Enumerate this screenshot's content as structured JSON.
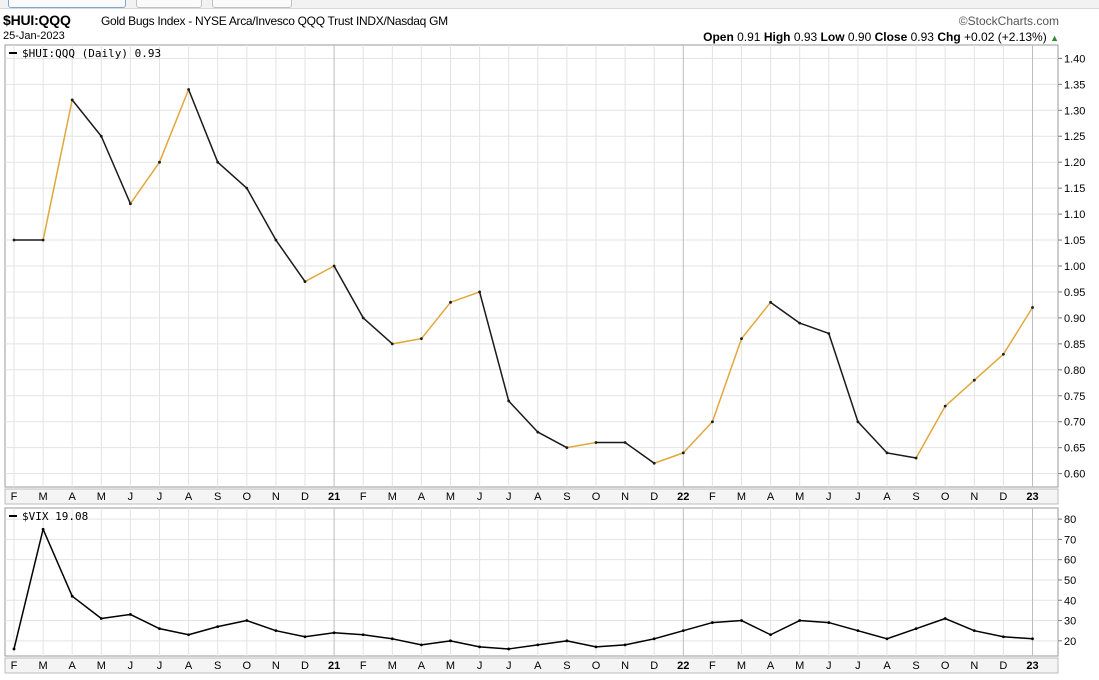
{
  "header": {
    "symbol": "$HUI:QQQ",
    "description": "Gold Bugs Index - NYSE Arca/Invesco QQQ Trust INDX/Nasdaq GM",
    "date": "25-Jan-2023",
    "brand": "StockCharts.com",
    "quote": {
      "open_label": "Open",
      "open": "0.91",
      "high_label": "High",
      "high": "0.93",
      "low_label": "Low",
      "low": "0.90",
      "close_label": "Close",
      "close": "0.93",
      "chg_label": "Chg",
      "chg": "+0.02 (+2.13%)"
    }
  },
  "chart_data": [
    {
      "type": "line",
      "legend": "$HUI:QQQ (Daily) 0.93",
      "ylim": [
        0.58,
        1.42
      ],
      "yticks": [
        "0.60",
        "0.65",
        "0.70",
        "0.75",
        "0.80",
        "0.85",
        "0.90",
        "0.95",
        "1.00",
        "1.05",
        "1.10",
        "1.15",
        "1.20",
        "1.25",
        "1.30",
        "1.35",
        "1.40"
      ],
      "months": [
        "F",
        "M",
        "A",
        "M",
        "J",
        "J",
        "A",
        "S",
        "O",
        "N",
        "D",
        "21",
        "F",
        "M",
        "A",
        "M",
        "J",
        "J",
        "A",
        "S",
        "O",
        "N",
        "D",
        "22",
        "F",
        "M",
        "A",
        "M",
        "J",
        "J",
        "A",
        "S",
        "O",
        "N",
        "D",
        "23"
      ],
      "x": [
        "2020-02",
        "2020-03",
        "2020-04",
        "2020-05",
        "2020-06",
        "2020-07",
        "2020-08",
        "2020-09",
        "2020-10",
        "2020-11",
        "2020-12",
        "2021-01",
        "2021-02",
        "2021-03",
        "2021-04",
        "2021-05",
        "2021-06",
        "2021-07",
        "2021-08",
        "2021-09",
        "2021-10",
        "2021-11",
        "2021-12",
        "2022-01",
        "2022-02",
        "2022-03",
        "2022-04",
        "2022-05",
        "2022-06",
        "2022-07",
        "2022-08",
        "2022-09",
        "2022-10",
        "2022-11",
        "2022-12",
        "2023-01"
      ],
      "values": [
        1.05,
        1.05,
        1.32,
        1.25,
        1.12,
        1.2,
        1.34,
        1.2,
        1.15,
        1.05,
        0.97,
        1.0,
        0.9,
        0.85,
        0.86,
        0.93,
        0.95,
        0.74,
        0.68,
        0.65,
        0.66,
        0.66,
        0.62,
        0.64,
        0.7,
        0.86,
        0.93,
        0.89,
        0.87,
        0.7,
        0.64,
        0.63,
        0.73,
        0.78,
        0.83,
        0.92
      ],
      "colors": {
        "line": "#1a1a1a",
        "up_segment": "#e0a83c"
      }
    },
    {
      "type": "line",
      "legend": "$VIX 19.08",
      "ylim": [
        14,
        84
      ],
      "yticks": [
        "20",
        "30",
        "40",
        "50",
        "60",
        "70",
        "80"
      ],
      "months": [
        "F",
        "M",
        "A",
        "M",
        "J",
        "J",
        "A",
        "S",
        "O",
        "N",
        "D",
        "21",
        "F",
        "M",
        "A",
        "M",
        "J",
        "J",
        "A",
        "S",
        "O",
        "N",
        "D",
        "22",
        "F",
        "M",
        "A",
        "M",
        "J",
        "J",
        "A",
        "S",
        "O",
        "N",
        "D",
        "23"
      ],
      "x": [
        "2020-02",
        "2020-03",
        "2020-04",
        "2020-05",
        "2020-06",
        "2020-07",
        "2020-08",
        "2020-09",
        "2020-10",
        "2020-11",
        "2020-12",
        "2021-01",
        "2021-02",
        "2021-03",
        "2021-04",
        "2021-05",
        "2021-06",
        "2021-07",
        "2021-08",
        "2021-09",
        "2021-10",
        "2021-11",
        "2021-12",
        "2022-01",
        "2022-02",
        "2022-03",
        "2022-04",
        "2022-05",
        "2022-06",
        "2022-07",
        "2022-08",
        "2022-09",
        "2022-10",
        "2022-11",
        "2022-12",
        "2023-01"
      ],
      "values": [
        16,
        75,
        42,
        31,
        33,
        26,
        23,
        27,
        30,
        25,
        22,
        24,
        23,
        21,
        18,
        20,
        17,
        16,
        18,
        20,
        17,
        18,
        21,
        25,
        29,
        30,
        23,
        30,
        29,
        25,
        21,
        26,
        31,
        25,
        22,
        21
      ],
      "colors": {
        "line": "#000000"
      }
    }
  ]
}
